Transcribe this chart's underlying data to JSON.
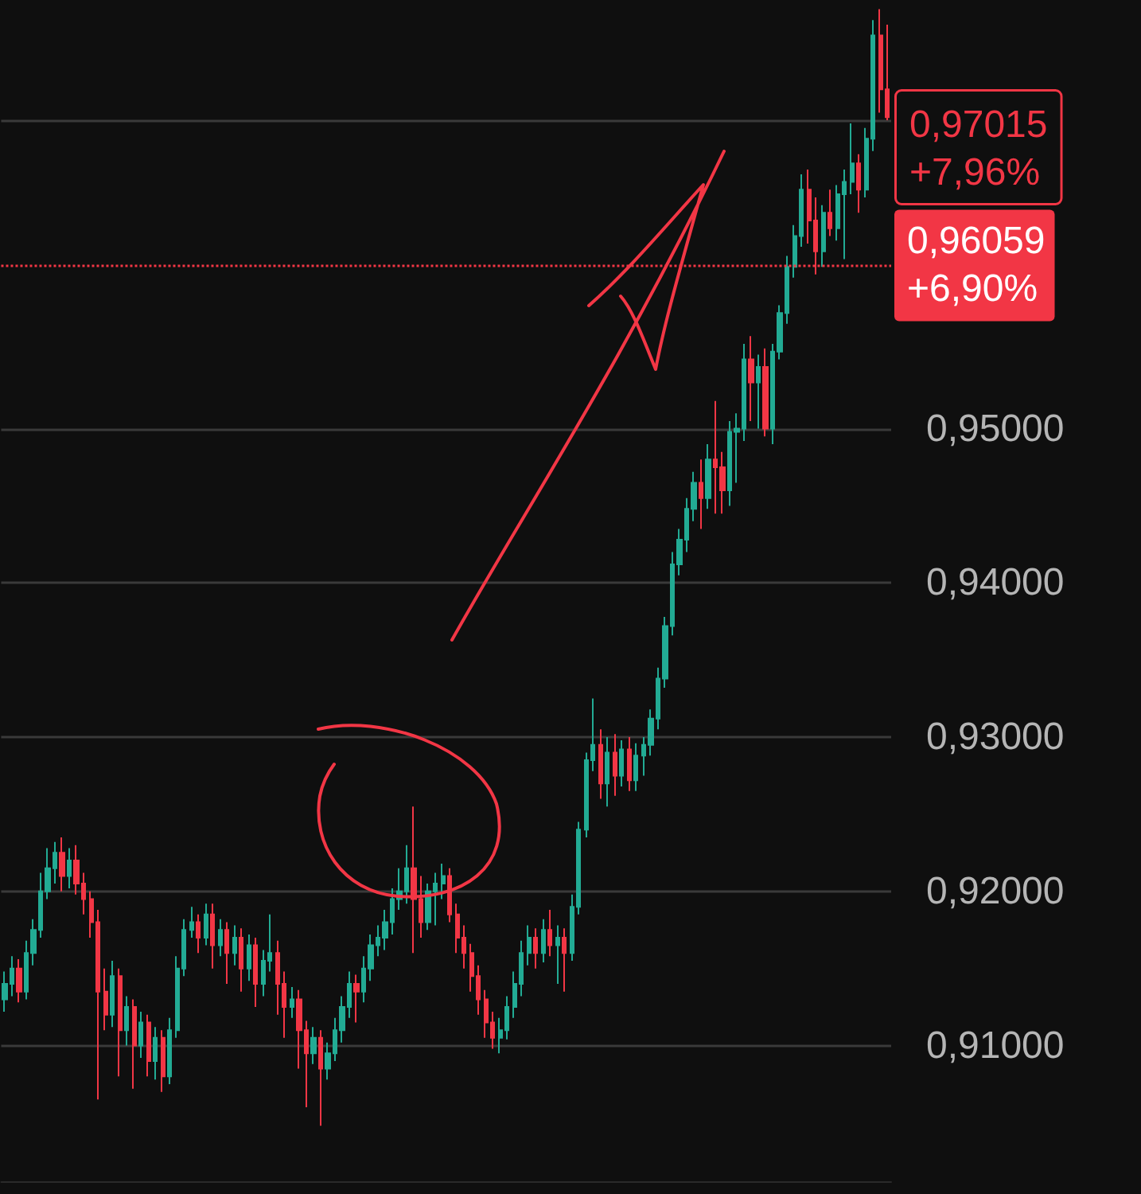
{
  "chart_data": {
    "type": "candlestick",
    "categories": [
      null,
      null,
      null,
      null,
      null,
      null,
      null,
      null,
      null,
      null,
      null,
      null,
      null,
      null,
      null,
      null,
      null,
      null,
      null,
      null,
      null,
      null,
      null,
      null,
      null,
      null,
      null,
      null,
      null,
      null,
      null,
      null,
      null,
      null,
      null,
      null,
      null,
      null,
      null,
      null,
      null,
      null,
      null,
      null,
      null,
      null,
      null,
      null,
      null,
      null,
      null,
      null,
      null,
      null,
      null,
      null,
      null,
      null,
      null,
      null,
      null,
      null,
      null,
      null,
      null,
      null,
      null,
      null,
      null,
      null,
      null,
      null,
      null,
      null,
      null,
      null,
      null,
      null,
      null,
      null,
      null,
      null,
      null,
      null,
      null,
      null,
      null,
      null,
      null,
      null,
      null,
      null,
      null,
      null,
      null,
      null,
      null,
      null,
      null,
      null,
      null,
      null,
      null,
      null,
      null,
      null,
      null,
      null,
      null,
      null,
      null,
      null,
      null,
      null,
      null,
      null,
      null,
      null,
      null,
      null,
      null,
      null,
      null,
      null
    ],
    "ohlc": [
      [
        0.913,
        0.9148,
        0.9122,
        0.914
      ],
      [
        0.914,
        0.9158,
        0.9132,
        0.915
      ],
      [
        0.915,
        0.9156,
        0.9128,
        0.9135
      ],
      [
        0.9135,
        0.9168,
        0.913,
        0.916
      ],
      [
        0.916,
        0.9182,
        0.9152,
        0.9175
      ],
      [
        0.9175,
        0.9212,
        0.917,
        0.92
      ],
      [
        0.92,
        0.9228,
        0.9195,
        0.9215
      ],
      [
        0.9215,
        0.9232,
        0.9205,
        0.9225
      ],
      [
        0.9225,
        0.9235,
        0.92,
        0.921
      ],
      [
        0.921,
        0.9228,
        0.9202,
        0.922
      ],
      [
        0.922,
        0.923,
        0.9198,
        0.9205
      ],
      [
        0.9205,
        0.9212,
        0.9185,
        0.9195
      ],
      [
        0.9195,
        0.92,
        0.917,
        0.918
      ],
      [
        0.918,
        0.9188,
        0.9065,
        0.9135
      ],
      [
        0.9135,
        0.915,
        0.911,
        0.912
      ],
      [
        0.912,
        0.9155,
        0.9112,
        0.9145
      ],
      [
        0.9145,
        0.915,
        0.908,
        0.911
      ],
      [
        0.911,
        0.9132,
        0.91,
        0.9125
      ],
      [
        0.9125,
        0.913,
        0.9072,
        0.91
      ],
      [
        0.91,
        0.9122,
        0.9092,
        0.9115
      ],
      [
        0.9115,
        0.912,
        0.908,
        0.909
      ],
      [
        0.909,
        0.9112,
        0.9078,
        0.9105
      ],
      [
        0.9105,
        0.911,
        0.907,
        0.908
      ],
      [
        0.908,
        0.9118,
        0.9075,
        0.911
      ],
      [
        0.911,
        0.9158,
        0.9105,
        0.915
      ],
      [
        0.915,
        0.9182,
        0.9145,
        0.9175
      ],
      [
        0.9175,
        0.919,
        0.917,
        0.918
      ],
      [
        0.918,
        0.9185,
        0.916,
        0.917
      ],
      [
        0.917,
        0.9192,
        0.9165,
        0.9185
      ],
      [
        0.9185,
        0.9192,
        0.915,
        0.9165
      ],
      [
        0.9165,
        0.9182,
        0.9158,
        0.9175
      ],
      [
        0.9175,
        0.918,
        0.914,
        0.916
      ],
      [
        0.916,
        0.9178,
        0.9152,
        0.917
      ],
      [
        0.917,
        0.9176,
        0.9135,
        0.915
      ],
      [
        0.915,
        0.9172,
        0.9142,
        0.9165
      ],
      [
        0.9165,
        0.917,
        0.9125,
        0.914
      ],
      [
        0.914,
        0.9162,
        0.9132,
        0.9155
      ],
      [
        0.9155,
        0.9185,
        0.9148,
        0.916
      ],
      [
        0.916,
        0.9168,
        0.912,
        0.914
      ],
      [
        0.914,
        0.9148,
        0.9105,
        0.9125
      ],
      [
        0.9125,
        0.9138,
        0.9118,
        0.913
      ],
      [
        0.913,
        0.9136,
        0.9085,
        0.911
      ],
      [
        0.911,
        0.9116,
        0.906,
        0.9095
      ],
      [
        0.9095,
        0.9112,
        0.9088,
        0.9105
      ],
      [
        0.9105,
        0.911,
        0.9048,
        0.9085
      ],
      [
        0.9085,
        0.9102,
        0.9078,
        0.9095
      ],
      [
        0.9095,
        0.9118,
        0.909,
        0.911
      ],
      [
        0.911,
        0.9132,
        0.9102,
        0.9125
      ],
      [
        0.9125,
        0.9148,
        0.9118,
        0.914
      ],
      [
        0.914,
        0.9146,
        0.9115,
        0.9135
      ],
      [
        0.9135,
        0.9158,
        0.9128,
        0.915
      ],
      [
        0.915,
        0.9172,
        0.9142,
        0.9165
      ],
      [
        0.9165,
        0.9178,
        0.9158,
        0.917
      ],
      [
        0.917,
        0.9188,
        0.9162,
        0.918
      ],
      [
        0.918,
        0.9202,
        0.9172,
        0.9195
      ],
      [
        0.9195,
        0.9215,
        0.9188,
        0.92
      ],
      [
        0.92,
        0.923,
        0.9192,
        0.9215
      ],
      [
        0.9215,
        0.9255,
        0.916,
        0.9195
      ],
      [
        0.9195,
        0.921,
        0.917,
        0.918
      ],
      [
        0.918,
        0.9205,
        0.9175,
        0.92
      ],
      [
        0.92,
        0.9212,
        0.9178,
        0.9205
      ],
      [
        0.9205,
        0.9218,
        0.9195,
        0.921
      ],
      [
        0.921,
        0.9215,
        0.918,
        0.9185
      ],
      [
        0.9185,
        0.9192,
        0.916,
        0.917
      ],
      [
        0.917,
        0.9178,
        0.915,
        0.916
      ],
      [
        0.916,
        0.9166,
        0.9135,
        0.9145
      ],
      [
        0.9145,
        0.9152,
        0.912,
        0.913
      ],
      [
        0.913,
        0.9136,
        0.9105,
        0.9115
      ],
      [
        0.9115,
        0.9122,
        0.9098,
        0.9105
      ],
      [
        0.9105,
        0.9118,
        0.9095,
        0.911
      ],
      [
        0.911,
        0.9132,
        0.9104,
        0.9125
      ],
      [
        0.9125,
        0.9148,
        0.9118,
        0.914
      ],
      [
        0.914,
        0.9168,
        0.9132,
        0.916
      ],
      [
        0.916,
        0.9178,
        0.9152,
        0.917
      ],
      [
        0.917,
        0.9176,
        0.915,
        0.916
      ],
      [
        0.916,
        0.9182,
        0.9154,
        0.9175
      ],
      [
        0.9175,
        0.9188,
        0.9158,
        0.9165
      ],
      [
        0.9165,
        0.9178,
        0.914,
        0.917
      ],
      [
        0.917,
        0.9176,
        0.9135,
        0.916
      ],
      [
        0.916,
        0.9198,
        0.9155,
        0.919
      ],
      [
        0.919,
        0.9245,
        0.9185,
        0.924
      ],
      [
        0.924,
        0.929,
        0.9235,
        0.9285
      ],
      [
        0.9285,
        0.9325,
        0.9278,
        0.9295
      ],
      [
        0.9295,
        0.9305,
        0.926,
        0.927
      ],
      [
        0.927,
        0.93,
        0.9255,
        0.929
      ],
      [
        0.929,
        0.9302,
        0.9262,
        0.9275
      ],
      [
        0.9275,
        0.9298,
        0.9268,
        0.9292
      ],
      [
        0.9292,
        0.93,
        0.9265,
        0.9272
      ],
      [
        0.9272,
        0.9296,
        0.9265,
        0.9288
      ],
      [
        0.9288,
        0.93,
        0.9275,
        0.9295
      ],
      [
        0.9295,
        0.9318,
        0.9288,
        0.9312
      ],
      [
        0.9312,
        0.9345,
        0.9305,
        0.9338
      ],
      [
        0.9338,
        0.9378,
        0.9332,
        0.9372
      ],
      [
        0.9372,
        0.942,
        0.9366,
        0.9412
      ],
      [
        0.9412,
        0.9435,
        0.9405,
        0.9428
      ],
      [
        0.9428,
        0.9455,
        0.942,
        0.9448
      ],
      [
        0.9448,
        0.9472,
        0.944,
        0.9465
      ],
      [
        0.9465,
        0.948,
        0.9435,
        0.9455
      ],
      [
        0.9455,
        0.949,
        0.9448,
        0.948
      ],
      [
        0.948,
        0.9518,
        0.9445,
        0.9475
      ],
      [
        0.9475,
        0.9485,
        0.9445,
        0.946
      ],
      [
        0.946,
        0.9505,
        0.945,
        0.9498
      ],
      [
        0.9498,
        0.951,
        0.9465,
        0.95
      ],
      [
        0.95,
        0.9555,
        0.9492,
        0.9545
      ],
      [
        0.9545,
        0.956,
        0.9505,
        0.953
      ],
      [
        0.953,
        0.9548,
        0.95,
        0.954
      ],
      [
        0.954,
        0.9552,
        0.9495,
        0.95
      ],
      [
        0.95,
        0.9555,
        0.949,
        0.955
      ],
      [
        0.955,
        0.958,
        0.9545,
        0.9575
      ],
      [
        0.9575,
        0.9612,
        0.9568,
        0.9605
      ],
      [
        0.9605,
        0.9632,
        0.9598,
        0.9625
      ],
      [
        0.9625,
        0.9665,
        0.9618,
        0.9655
      ],
      [
        0.9655,
        0.9668,
        0.962,
        0.9635
      ],
      [
        0.9635,
        0.965,
        0.96,
        0.9615
      ],
      [
        0.9615,
        0.9645,
        0.9605,
        0.964
      ],
      [
        0.964,
        0.9655,
        0.9625,
        0.963
      ],
      [
        0.963,
        0.9658,
        0.9622,
        0.9652
      ],
      [
        0.9652,
        0.9668,
        0.961,
        0.966
      ],
      [
        0.966,
        0.9698,
        0.9652,
        0.9672
      ],
      [
        0.9672,
        0.9678,
        0.964,
        0.9655
      ],
      [
        0.9655,
        0.9695,
        0.965,
        0.9688
      ],
      [
        0.9688,
        0.9765,
        0.968,
        0.9755
      ],
      [
        0.9755,
        0.9772,
        0.9705,
        0.972
      ],
      [
        0.972,
        0.9762,
        0.97,
        0.9702
      ]
    ],
    "ylim": [
      0.9012,
      0.9778
    ],
    "yticks": [
      {
        "value": 0.91,
        "label": "0,91000"
      },
      {
        "value": 0.92,
        "label": "0,92000"
      },
      {
        "value": 0.93,
        "label": "0,93000"
      },
      {
        "value": 0.94,
        "label": "0,94000"
      },
      {
        "value": 0.95,
        "label": "0,95000"
      },
      {
        "value": 0.97,
        "label": null
      }
    ],
    "grid": "y",
    "ref_lines": [
      {
        "axis": "y",
        "value": 0.96059,
        "label": "0,96059\n+6,90%",
        "color": "#f23645",
        "line_style": "dotted"
      }
    ],
    "annotations": [
      "0,97015\n+7,96%"
    ]
  }
}
